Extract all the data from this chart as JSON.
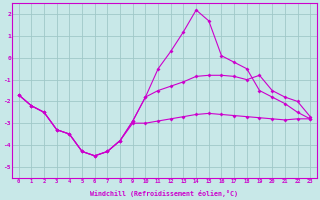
{
  "bg_color": "#c8e8e8",
  "grid_color": "#a0c8c8",
  "line_color": "#cc00cc",
  "xlabel": "Windchill (Refroidissement éolien,°C)",
  "xlim": [
    -0.5,
    23.5
  ],
  "ylim": [
    -5.5,
    2.5
  ],
  "yticks": [
    -5,
    -4,
    -3,
    -2,
    -1,
    0,
    1,
    2
  ],
  "xticks": [
    0,
    1,
    2,
    3,
    4,
    5,
    6,
    7,
    8,
    9,
    10,
    11,
    12,
    13,
    14,
    15,
    16,
    17,
    18,
    19,
    20,
    21,
    22,
    23
  ],
  "line1_x": [
    0,
    1,
    2,
    3,
    4,
    5,
    6,
    7,
    8,
    9,
    10,
    11,
    12,
    13,
    14,
    15,
    16,
    17,
    18,
    19,
    20,
    21,
    22,
    23
  ],
  "line1_y": [
    -1.7,
    -2.2,
    -2.5,
    -3.3,
    -3.5,
    -4.3,
    -4.5,
    -4.3,
    -3.8,
    -3.0,
    -3.0,
    -2.9,
    -2.8,
    -2.7,
    -2.6,
    -2.55,
    -2.6,
    -2.65,
    -2.7,
    -2.75,
    -2.8,
    -2.85,
    -2.8,
    -2.8
  ],
  "line2_x": [
    0,
    1,
    2,
    3,
    4,
    5,
    6,
    7,
    8,
    9,
    10,
    11,
    12,
    13,
    14,
    15,
    16,
    17,
    18,
    19,
    20,
    21,
    22,
    23
  ],
  "line2_y": [
    -1.7,
    -2.2,
    -2.5,
    -3.3,
    -3.5,
    -4.3,
    -4.5,
    -4.3,
    -3.8,
    -2.9,
    -1.8,
    -0.5,
    0.3,
    1.2,
    2.2,
    1.7,
    0.1,
    -0.2,
    -0.5,
    -1.5,
    -1.8,
    -2.1,
    -2.5,
    -2.8
  ],
  "line3_x": [
    0,
    1,
    2,
    3,
    4,
    5,
    6,
    7,
    8,
    9,
    10,
    11,
    12,
    13,
    14,
    15,
    16,
    17,
    18,
    19,
    20,
    21,
    22,
    23
  ],
  "line3_y": [
    -1.7,
    -2.2,
    -2.5,
    -3.3,
    -3.5,
    -4.3,
    -4.5,
    -4.3,
    -3.8,
    -2.9,
    -1.8,
    -1.5,
    -1.3,
    -1.1,
    -0.85,
    -0.8,
    -0.8,
    -0.85,
    -1.0,
    -0.8,
    -1.5,
    -1.8,
    -2.0,
    -2.7
  ]
}
